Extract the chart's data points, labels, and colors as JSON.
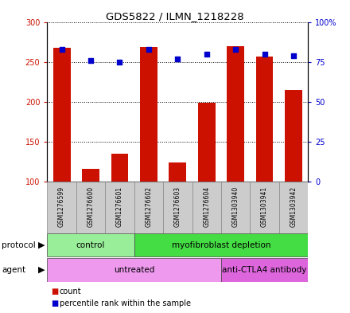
{
  "title": "GDS5822 / ILMN_1218228",
  "samples": [
    "GSM1276599",
    "GSM1276600",
    "GSM1276601",
    "GSM1276602",
    "GSM1276603",
    "GSM1276604",
    "GSM1303940",
    "GSM1303941",
    "GSM1303942"
  ],
  "counts": [
    268,
    116,
    135,
    269,
    124,
    199,
    270,
    257,
    215
  ],
  "percentiles": [
    83,
    76,
    75,
    83,
    77,
    80,
    83,
    80,
    79
  ],
  "ylim_left": [
    100,
    300
  ],
  "ylim_right": [
    0,
    100
  ],
  "yticks_left": [
    100,
    150,
    200,
    250,
    300
  ],
  "yticks_right": [
    0,
    25,
    50,
    75,
    100
  ],
  "ytick_labels_left": [
    "100",
    "150",
    "200",
    "250",
    "300"
  ],
  "ytick_labels_right": [
    "0",
    "25",
    "50",
    "75",
    "100%"
  ],
  "bar_color": "#cc1100",
  "dot_color": "#0000cc",
  "grid_color": "#000000",
  "protocol_items": [
    {
      "text": "control",
      "start": 0,
      "end": 3,
      "color": "#99ee99"
    },
    {
      "text": "myofibroblast depletion",
      "start": 3,
      "end": 9,
      "color": "#44dd44"
    }
  ],
  "agent_items": [
    {
      "text": "untreated",
      "start": 0,
      "end": 6,
      "color": "#ee99ee"
    },
    {
      "text": "anti-CTLA4 antibody",
      "start": 6,
      "end": 9,
      "color": "#dd66dd"
    }
  ],
  "legend_count_color": "#cc1100",
  "legend_percentile_color": "#0000cc",
  "bg_color": "#ffffff",
  "plot_bg": "#ffffff",
  "sample_bg": "#cccccc"
}
